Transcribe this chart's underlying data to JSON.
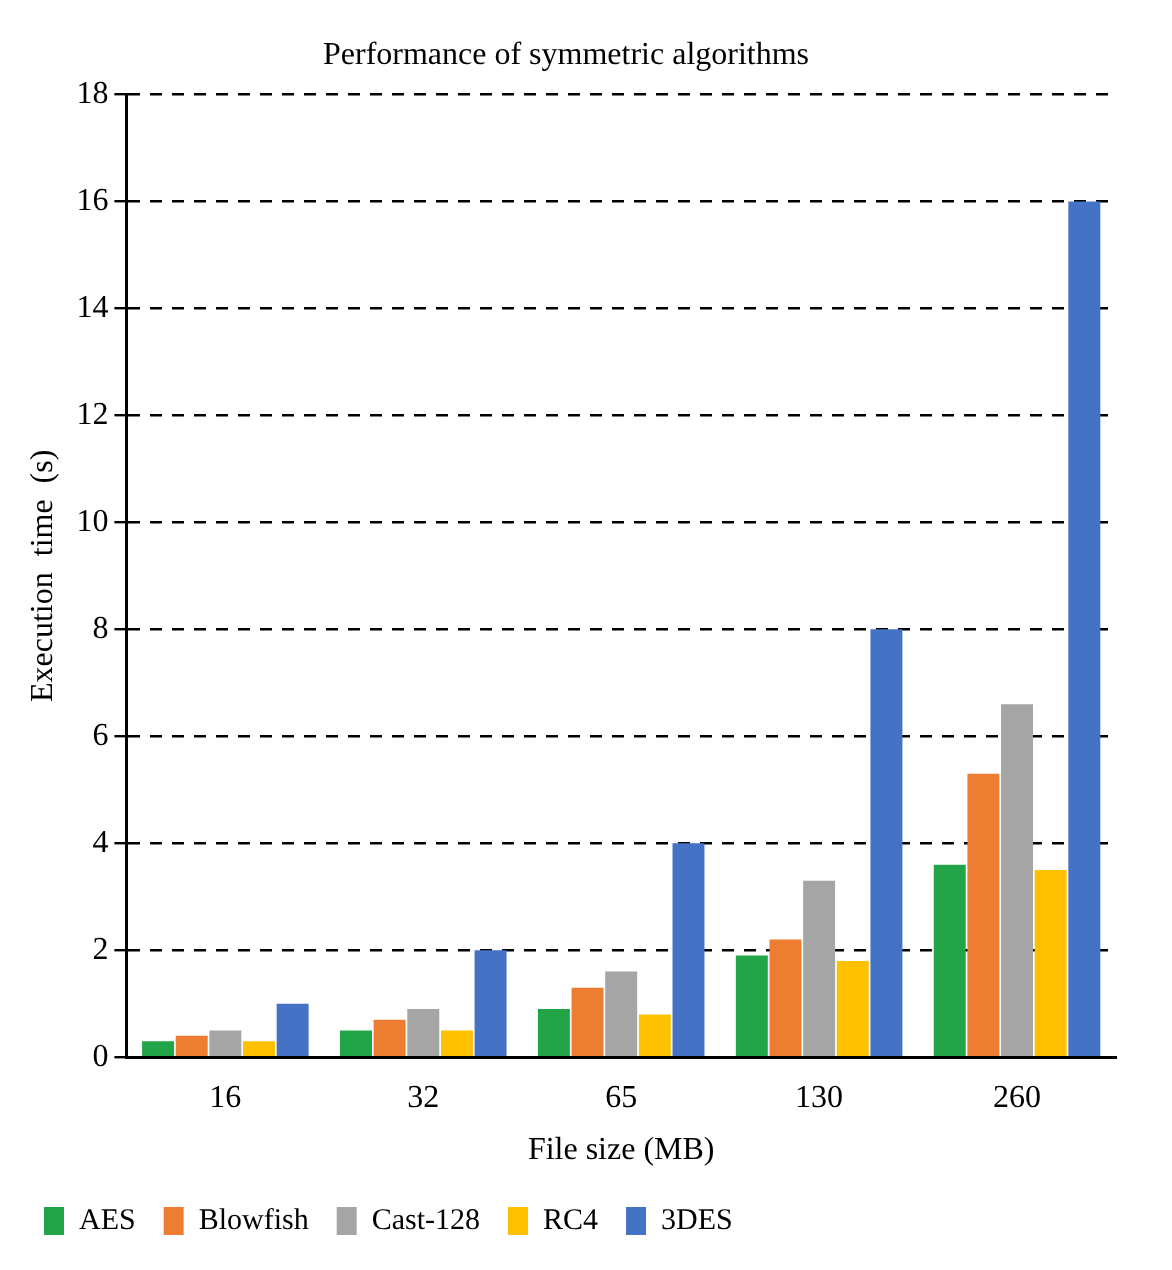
{
  "chart_data": {
    "type": "bar",
    "title": "Performance of symmetric algorithms",
    "xlabel": "File size (MB)",
    "ylabel": "Execution  time  (s)",
    "categories": [
      "16",
      "32",
      "65",
      "130",
      "260"
    ],
    "series": [
      {
        "name": "AES",
        "color": "#22a548",
        "values": [
          0.3,
          0.5,
          0.9,
          1.9,
          3.6
        ]
      },
      {
        "name": "Blowfish",
        "color": "#ed7d31",
        "values": [
          0.4,
          0.7,
          1.3,
          2.2,
          5.3
        ]
      },
      {
        "name": "Cast-128",
        "color": "#a5a5a5",
        "values": [
          0.5,
          0.9,
          1.6,
          3.3,
          6.6
        ]
      },
      {
        "name": "RC4",
        "color": "#ffc000",
        "values": [
          0.3,
          0.5,
          0.8,
          1.8,
          3.5
        ]
      },
      {
        "name": "3DES",
        "color": "#4472c4",
        "values": [
          1,
          2,
          4,
          8,
          16
        ]
      }
    ],
    "ylim": [
      0,
      18
    ],
    "yticks": [
      0,
      2,
      4,
      6,
      8,
      10,
      12,
      14,
      16,
      18
    ],
    "grid": "y",
    "legend": "bottom"
  }
}
